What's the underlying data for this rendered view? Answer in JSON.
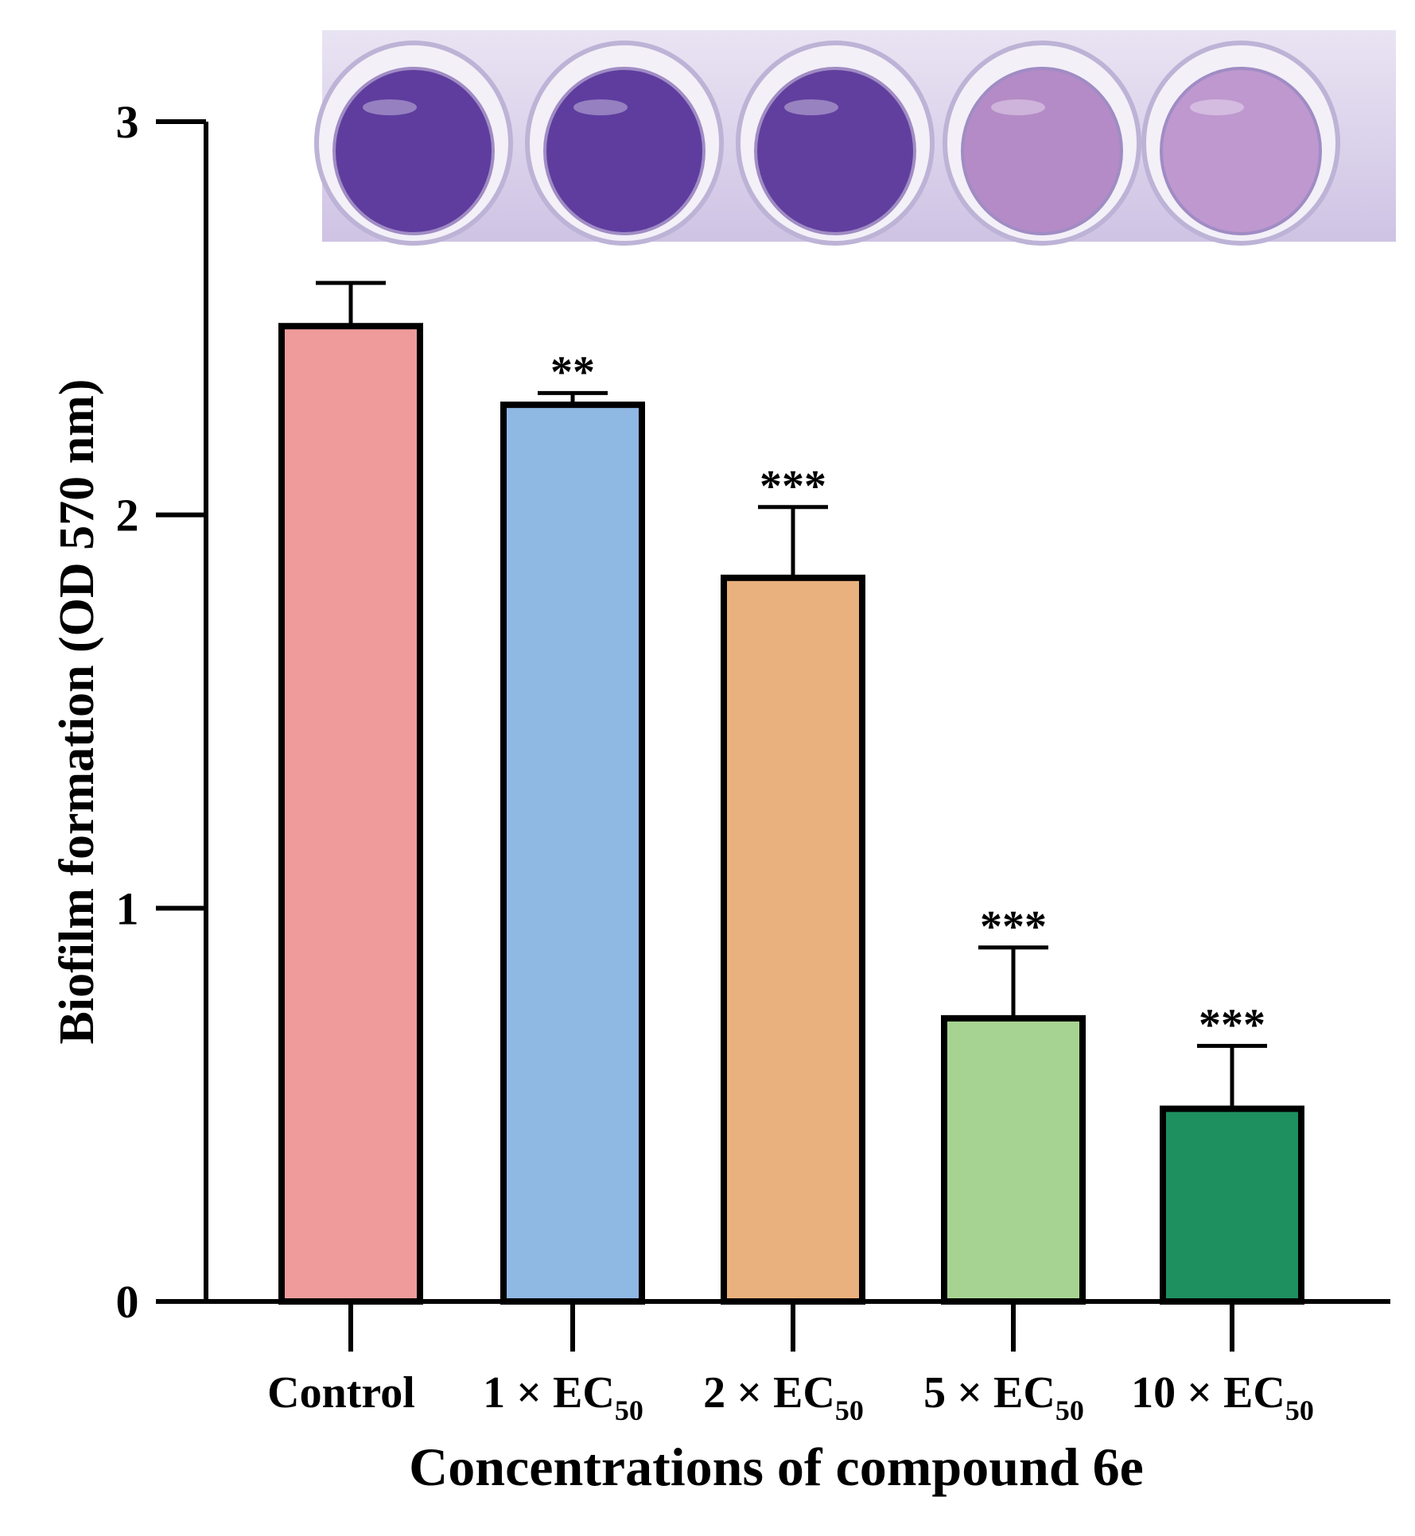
{
  "chart_data": {
    "type": "bar",
    "title": "",
    "xlabel": "Concentrations of compound 6e",
    "ylabel": "Biofilm formation (OD 570 nm)",
    "ylim": [
      0,
      3
    ],
    "yticks": [
      0,
      1,
      2,
      3
    ],
    "grid": false,
    "categories": [
      {
        "prefix": "Control",
        "sub": ""
      },
      {
        "prefix": "1 × EC",
        "sub": "50"
      },
      {
        "prefix": "2 × EC",
        "sub": "50"
      },
      {
        "prefix": "5 × EC",
        "sub": "50"
      },
      {
        "prefix": "10 × EC",
        "sub": "50"
      }
    ],
    "values": [
      2.48,
      2.28,
      1.84,
      0.72,
      0.49
    ],
    "errors": [
      0.11,
      0.03,
      0.18,
      0.18,
      0.16
    ],
    "significance": [
      "",
      "**",
      "***",
      "***",
      "***"
    ],
    "colors": [
      "#F09B9B",
      "#8FB8E3",
      "#E9B17D",
      "#A7D392",
      "#1E8F5F"
    ],
    "inset_photo": {
      "description": "crystal violet stained wells",
      "well_colors": [
        "#5F3D9E",
        "#5E3D9F",
        "#613F9E",
        "#B48BC6",
        "#BE98CF"
      ]
    }
  }
}
